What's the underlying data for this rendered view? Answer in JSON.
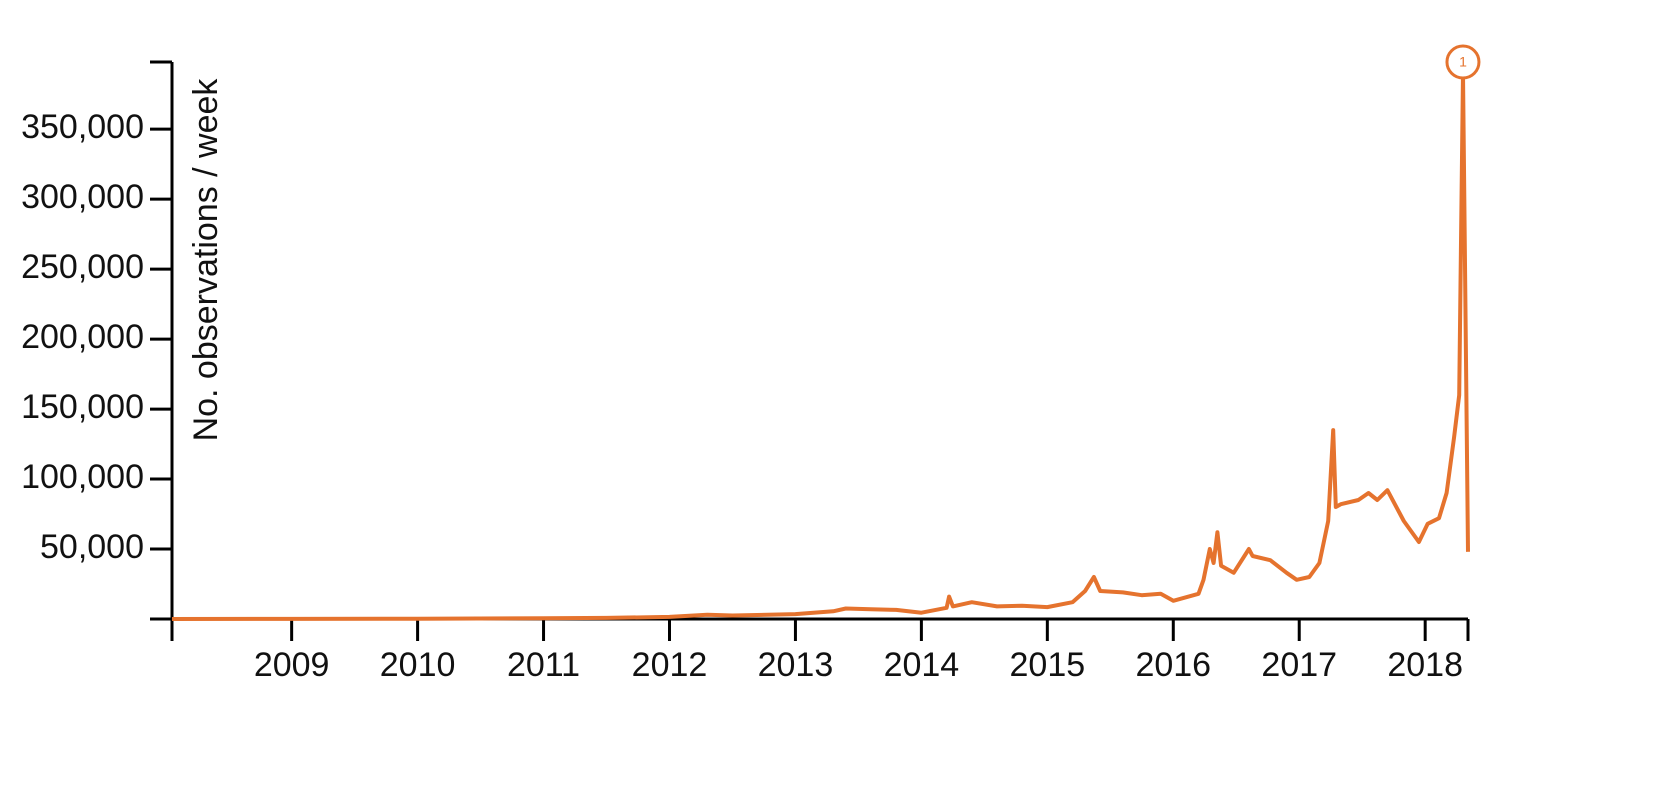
{
  "chart_data": {
    "type": "line",
    "y_label": "No. observations / week",
    "xlim": [
      2008.05,
      2018.34
    ],
    "xticks": [
      2009,
      2010,
      2011,
      2012,
      2013,
      2014,
      2015,
      2016,
      2017,
      2018
    ],
    "ylim": [
      0,
      398000
    ],
    "yticks": [
      {
        "value": 50000,
        "label": "50,000"
      },
      {
        "value": 100000,
        "label": "100,000"
      },
      {
        "value": 150000,
        "label": "150,000"
      },
      {
        "value": 200000,
        "label": "200,000"
      },
      {
        "value": 250000,
        "label": "250,000"
      },
      {
        "value": 300000,
        "label": "300,000"
      },
      {
        "value": 350000,
        "label": "350,000"
      }
    ],
    "series": [
      {
        "color": "#e5732e",
        "x": [
          2008.05,
          2009,
          2010,
          2011,
          2011.5,
          2012,
          2012.3,
          2012.5,
          2013,
          2013.3,
          2013.4,
          2013.6,
          2013.8,
          2014.0,
          2014.2,
          2014.22,
          2014.25,
          2014.4,
          2014.6,
          2014.8,
          2015.0,
          2015.2,
          2015.3,
          2015.37,
          2015.42,
          2015.6,
          2015.75,
          2015.9,
          2016.0,
          2016.2,
          2016.24,
          2016.29,
          2016.32,
          2016.35,
          2016.38,
          2016.48,
          2016.6,
          2016.63,
          2016.77,
          2016.9,
          2016.98,
          2017.08,
          2017.16,
          2017.23,
          2017.27,
          2017.29,
          2017.33,
          2017.47,
          2017.55,
          2017.62,
          2017.7,
          2017.83,
          2017.95,
          2018.02,
          2018.11,
          2018.17,
          2018.23,
          2018.27,
          2018.3,
          2018.34
        ],
        "values": [
          0,
          100,
          200,
          500,
          800,
          1500,
          3000,
          2500,
          3500,
          5500,
          7500,
          7000,
          6500,
          4500,
          8000,
          16000,
          9000,
          12000,
          9000,
          9500,
          8500,
          12000,
          20000,
          30000,
          20000,
          19000,
          17000,
          18000,
          13000,
          18000,
          28000,
          50000,
          40000,
          62000,
          38000,
          33000,
          50000,
          45000,
          42000,
          33000,
          28000,
          30000,
          40000,
          70000,
          135000,
          80000,
          82000,
          85000,
          90000,
          85000,
          92000,
          70000,
          55000,
          68000,
          72000,
          90000,
          130000,
          160000,
          390000,
          48000
        ]
      }
    ],
    "annotations": [
      {
        "x": 2018.3,
        "y": 398000,
        "label": "1"
      }
    ]
  }
}
